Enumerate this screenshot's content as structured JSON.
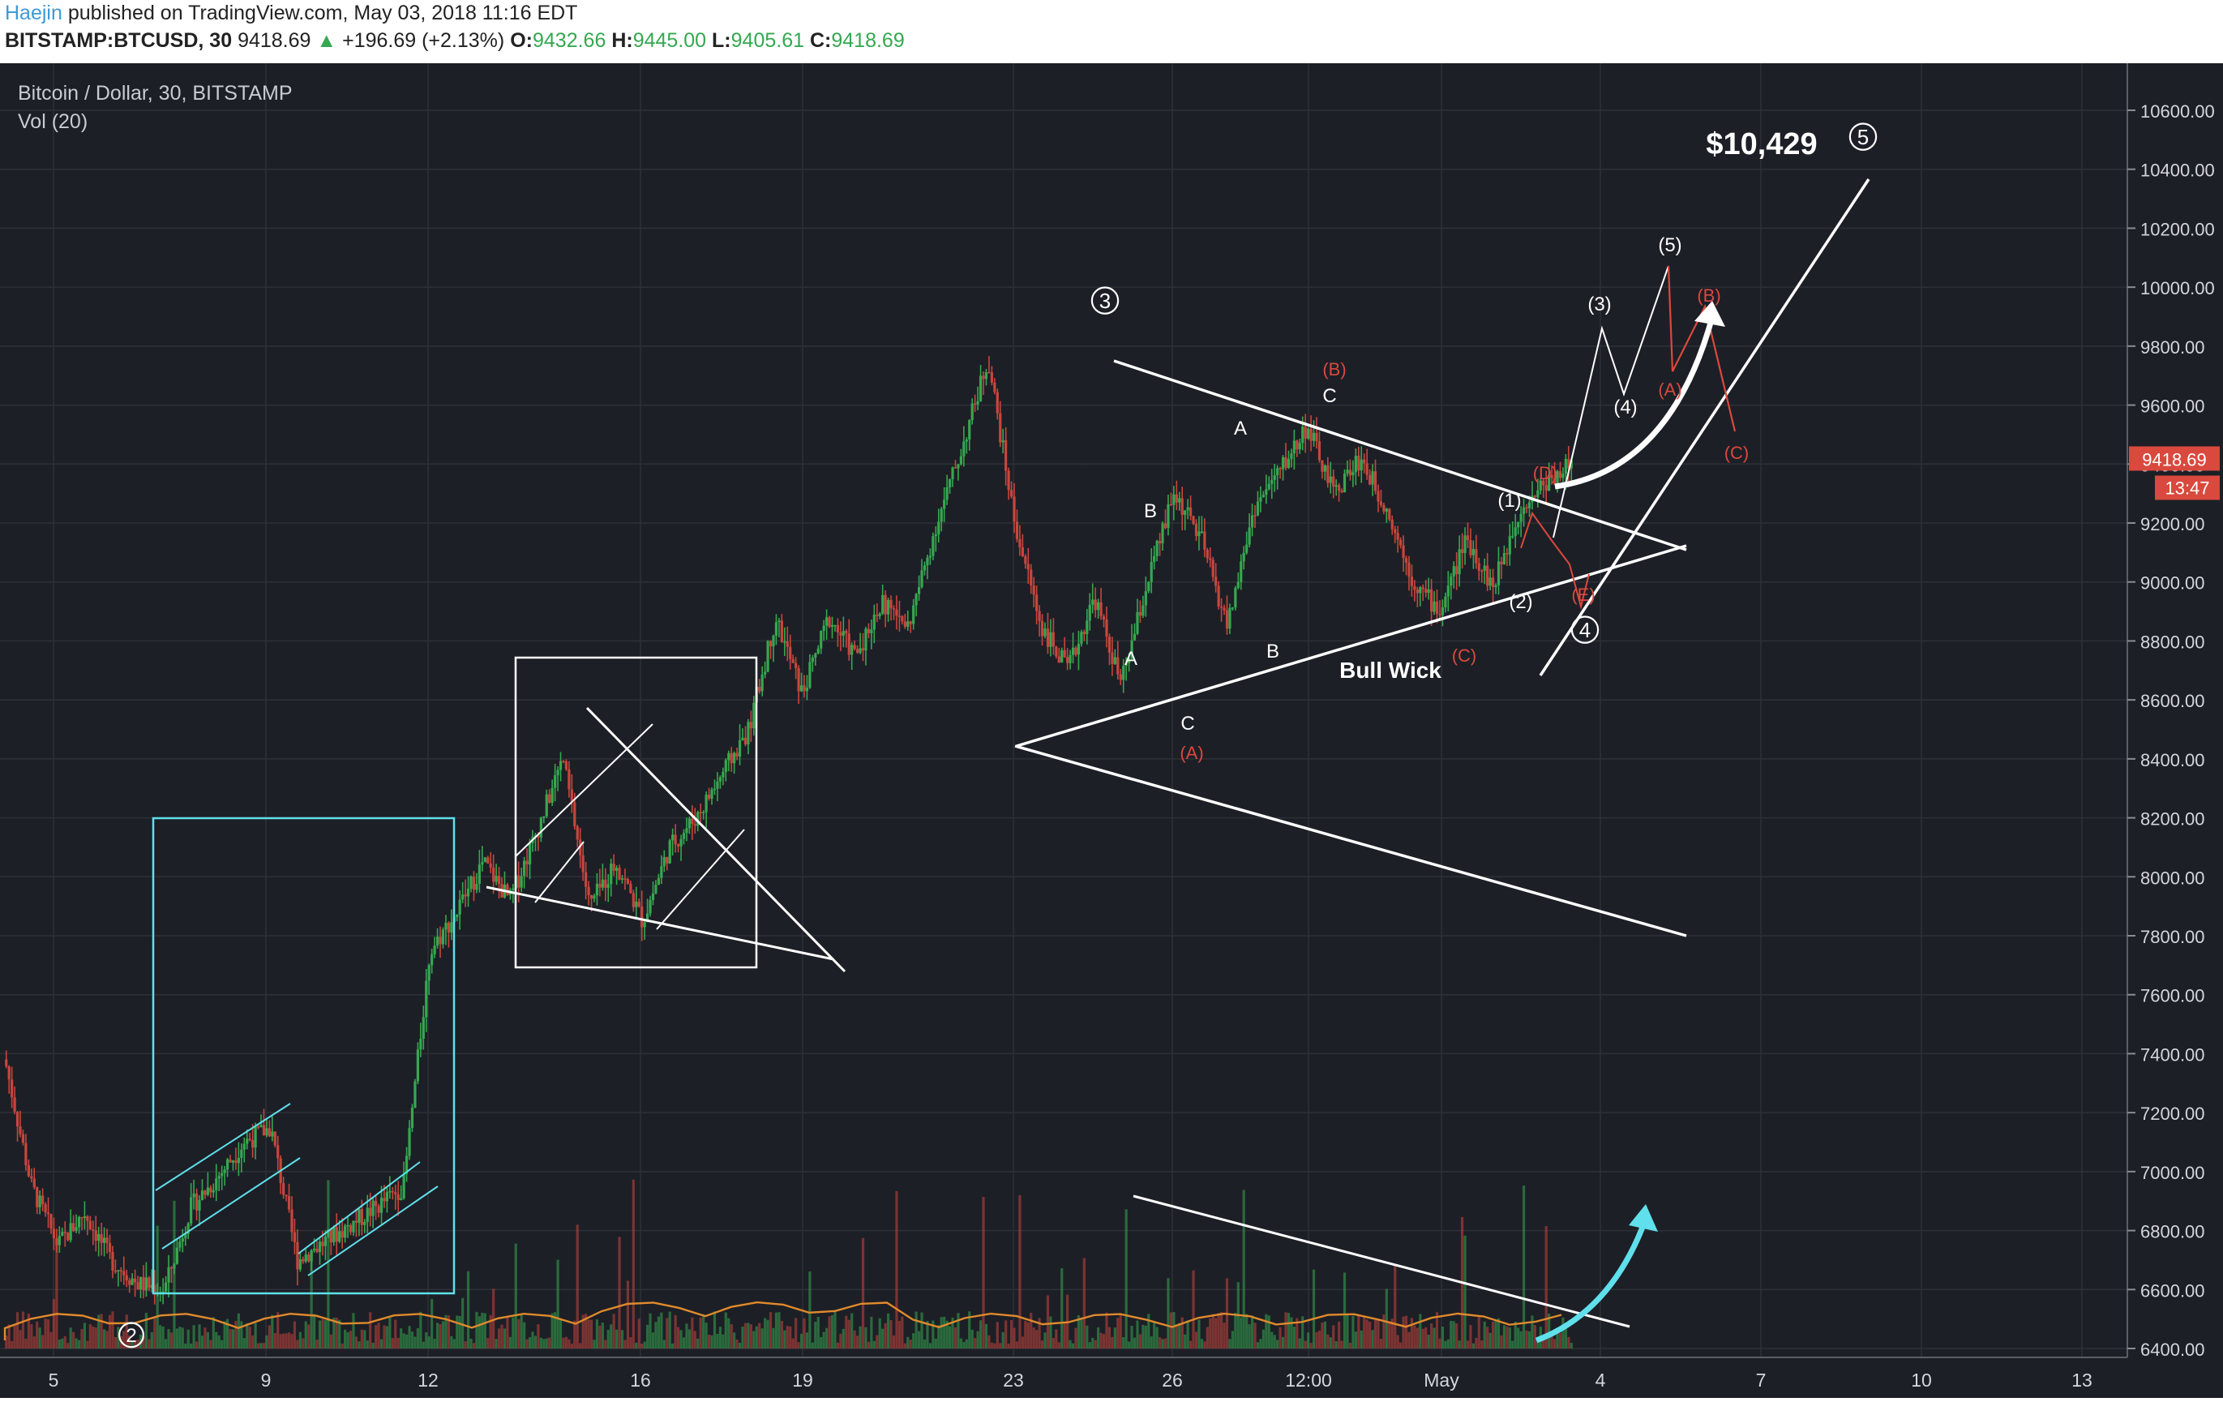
{
  "header": {
    "author": "Haejin",
    "published_text": "published on TradingView.com, May 03, 2018 11:16 EDT",
    "symbol": "BITSTAMP:BTCUSD, 30",
    "last": "9418.69",
    "change": "+196.69 (+2.13%)",
    "o_label": "O:",
    "o_value": "9432.66",
    "h_label": "H:",
    "h_value": "9445.00",
    "l_label": "L:",
    "l_value": "9405.61",
    "c_label": "C:",
    "c_value": "9418.69"
  },
  "chart_data": {
    "type": "candlestick",
    "title": "Bitcoin / Dollar, 30, BITSTAMP",
    "indicator": "Vol (20)",
    "ylim": [
      6350,
      10700
    ],
    "y_ticks": [
      "6400.00",
      "6600.00",
      "6800.00",
      "7000.00",
      "7200.00",
      "7400.00",
      "7600.00",
      "7800.00",
      "8000.00",
      "8200.00",
      "8400.00",
      "8600.00",
      "8800.00",
      "9000.00",
      "9200.00",
      "9400.00",
      "9600.00",
      "9800.00",
      "10000.00",
      "10200.00",
      "10400.00",
      "10600.00"
    ],
    "x_ticks": [
      "5",
      "9",
      "12",
      "16",
      "19",
      "23",
      "26",
      "12:00",
      "May",
      "4",
      "7",
      "10",
      "13"
    ],
    "price_badge": "9418.69",
    "time_badge": "13:47",
    "colors": {
      "up": "#35a850",
      "down": "#c8463d",
      "background": "#1d1f26",
      "grid": "#2e3038",
      "annotation": "#ffffff",
      "red_label": "#d9493e",
      "cyan": "#5fe0ec"
    },
    "price_path": [
      [
        1,
        7380
      ],
      [
        2,
        6950
      ],
      [
        3,
        6750
      ],
      [
        4,
        6860
      ],
      [
        5,
        6700
      ],
      [
        6,
        6620
      ],
      [
        7,
        6600
      ],
      [
        8,
        6880
      ],
      [
        9,
        6980
      ],
      [
        10,
        7100
      ],
      [
        11,
        7150
      ],
      [
        12,
        6700
      ],
      [
        13,
        6760
      ],
      [
        14,
        6820
      ],
      [
        15,
        6880
      ],
      [
        16,
        6950
      ],
      [
        17,
        7750
      ],
      [
        18,
        7880
      ],
      [
        19,
        8050
      ],
      [
        20,
        7920
      ],
      [
        21,
        8150
      ],
      [
        22,
        8400
      ],
      [
        23,
        7900
      ],
      [
        24,
        8050
      ],
      [
        25,
        7850
      ],
      [
        26,
        8100
      ],
      [
        27,
        8200
      ],
      [
        28,
        8350
      ],
      [
        29,
        8500
      ],
      [
        30,
        8880
      ],
      [
        31,
        8620
      ],
      [
        32,
        8880
      ],
      [
        33,
        8750
      ],
      [
        34,
        8930
      ],
      [
        35,
        8850
      ],
      [
        36,
        9180
      ],
      [
        37,
        9450
      ],
      [
        38,
        9760
      ],
      [
        39,
        9200
      ],
      [
        40,
        8850
      ],
      [
        41,
        8700
      ],
      [
        42,
        8950
      ],
      [
        43,
        8650
      ],
      [
        44,
        9000
      ],
      [
        45,
        9300
      ],
      [
        46,
        9150
      ],
      [
        47,
        8850
      ],
      [
        48,
        9250
      ],
      [
        49,
        9380
      ],
      [
        50,
        9530
      ],
      [
        51,
        9300
      ],
      [
        52,
        9420
      ],
      [
        53,
        9250
      ],
      [
        54,
        9000
      ],
      [
        55,
        8900
      ],
      [
        56,
        9150
      ],
      [
        57,
        8980
      ],
      [
        58,
        9250
      ],
      [
        59,
        9340
      ],
      [
        60,
        9410
      ]
    ],
    "annotations": [
      {
        "text": "$10,429",
        "color": "white"
      },
      {
        "text": "5",
        "color": "white",
        "circled": true
      },
      {
        "text": "3",
        "color": "white",
        "circled": true
      },
      {
        "text": "4",
        "color": "white",
        "circled": true
      },
      {
        "text": "2",
        "color": "white",
        "circled": true
      },
      {
        "text": "(5)",
        "color": "white"
      },
      {
        "text": "(3)",
        "color": "white"
      },
      {
        "text": "(4)",
        "color": "white"
      },
      {
        "text": "(1)",
        "color": "white"
      },
      {
        "text": "(2)",
        "color": "white"
      },
      {
        "text": "(B)",
        "color": "red"
      },
      {
        "text": "(B)",
        "color": "red"
      },
      {
        "text": "(A)",
        "color": "red"
      },
      {
        "text": "(A)",
        "color": "red"
      },
      {
        "text": "(C)",
        "color": "red"
      },
      {
        "text": "(C)",
        "color": "red"
      },
      {
        "text": "(D)",
        "color": "red"
      },
      {
        "text": "(E)",
        "color": "red"
      },
      {
        "text": "A",
        "color": "white"
      },
      {
        "text": "A",
        "color": "white"
      },
      {
        "text": "B",
        "color": "white"
      },
      {
        "text": "B",
        "color": "white"
      },
      {
        "text": "C",
        "color": "white"
      },
      {
        "text": "C",
        "color": "white"
      },
      {
        "text": "Bull Wick",
        "color": "white"
      }
    ]
  }
}
